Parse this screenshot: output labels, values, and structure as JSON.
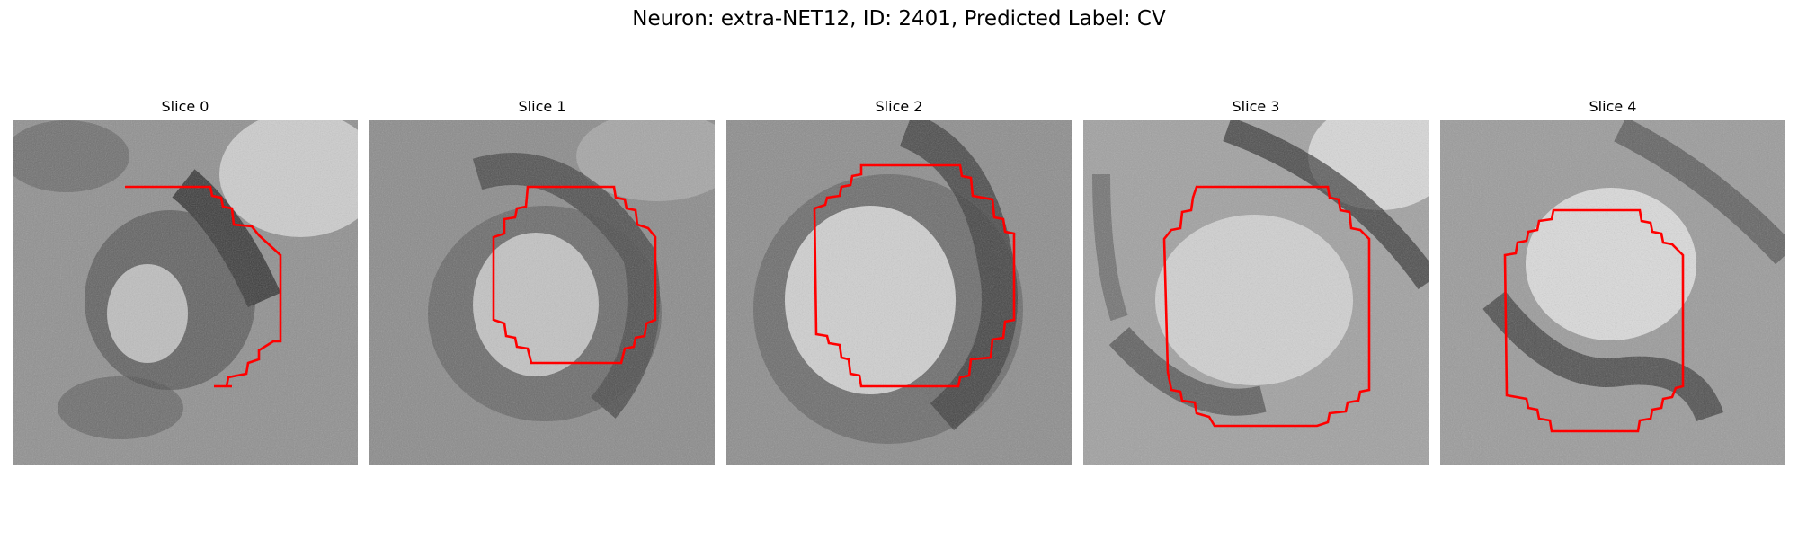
{
  "figure": {
    "title": "Neuron: extra-NET12, ID: 2401, Predicted Label: CV"
  },
  "panels": [
    {
      "title": "Slice 0"
    },
    {
      "title": "Slice 1"
    },
    {
      "title": "Slice 2"
    },
    {
      "title": "Slice 3"
    },
    {
      "title": "Slice 4"
    }
  ],
  "colors": {
    "contour": "#ff0000",
    "background": "#ffffff"
  }
}
